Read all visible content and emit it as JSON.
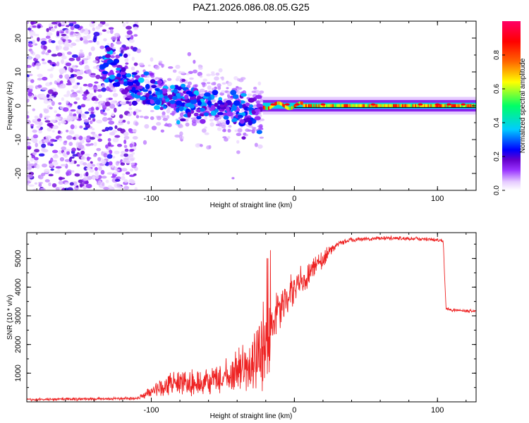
{
  "chart_data": [
    {
      "type": "heatmap",
      "title": "PAZ1.2026.086.08.05.G25",
      "xlabel": "Height of straight line (km)",
      "ylabel": "Frequency (Hz)",
      "xlim": [
        -187,
        127
      ],
      "ylim": [
        -25,
        25
      ],
      "xticks": [
        -100,
        0,
        100
      ],
      "xtick_labels": [
        "-100",
        "0",
        "100"
      ],
      "yticks": [
        -20,
        -10,
        0,
        10,
        20
      ],
      "ytick_labels": [
        "-20",
        "-10",
        "0",
        "10",
        "20"
      ],
      "colorbar": {
        "label": "Normalized spectral amplitude",
        "range": [
          0.0,
          1.0
        ],
        "ticks": [
          0.0,
          0.2,
          0.4,
          0.6,
          0.8
        ],
        "tick_labels": [
          "0.0",
          "0.2",
          "0.4",
          "0.6",
          "0.8"
        ],
        "colormap": [
          "#ffffff",
          "#e6ccff",
          "#9933ff",
          "#6600cc",
          "#0000ff",
          "#00ccff",
          "#00ff66",
          "#ffff00",
          "#ff6600",
          "#ff0000",
          "#ff0066"
        ]
      },
      "features": {
        "noise_region_km": [
          -187,
          -110
        ],
        "transition_region_km": [
          -110,
          -22
        ],
        "tracked_line_region_km": [
          -22,
          127
        ],
        "tracked_line_freq_hz": 0,
        "transition_trend_freq_hz": [
          [
            -130,
            11
          ],
          [
            -100,
            3
          ],
          [
            -70,
            1
          ],
          [
            -50,
            -1
          ],
          [
            -30,
            -2
          ],
          [
            -20,
            -1
          ]
        ]
      }
    },
    {
      "type": "line",
      "title": "",
      "xlabel": "Height of straight line (km)",
      "ylabel": "SNR (10 * v/v)",
      "xlim": [
        -187,
        127
      ],
      "ylim": [
        0,
        5900
      ],
      "xticks": [
        -100,
        0,
        100
      ],
      "xtick_labels": [
        "-100",
        "0",
        "100"
      ],
      "yticks": [
        1000,
        2000,
        3000,
        4000,
        5000
      ],
      "ytick_labels": [
        "1000",
        "2000",
        "3000",
        "4000",
        "5000"
      ],
      "series": [
        {
          "name": "SNR",
          "color": "#ee2222",
          "envelope_x": [
            -187,
            -110,
            -100,
            -90,
            -80,
            -70,
            -60,
            -50,
            -40,
            -30,
            -25,
            -20,
            -15,
            -10,
            -5,
            0,
            10,
            20,
            30,
            40,
            60,
            80,
            100,
            104,
            106,
            110,
            127
          ],
          "envelope_mean": [
            80,
            120,
            350,
            600,
            700,
            650,
            700,
            800,
            1000,
            1400,
            1800,
            2000,
            2700,
            3300,
            3700,
            4000,
            4400,
            5000,
            5500,
            5650,
            5700,
            5700,
            5650,
            5600,
            3250,
            3200,
            3150
          ],
          "envelope_spread": [
            60,
            60,
            250,
            450,
            550,
            500,
            600,
            700,
            900,
            1200,
            1600,
            1900,
            1000,
            900,
            800,
            700,
            500,
            350,
            150,
            90,
            80,
            80,
            80,
            80,
            60,
            60,
            60
          ]
        }
      ]
    }
  ]
}
